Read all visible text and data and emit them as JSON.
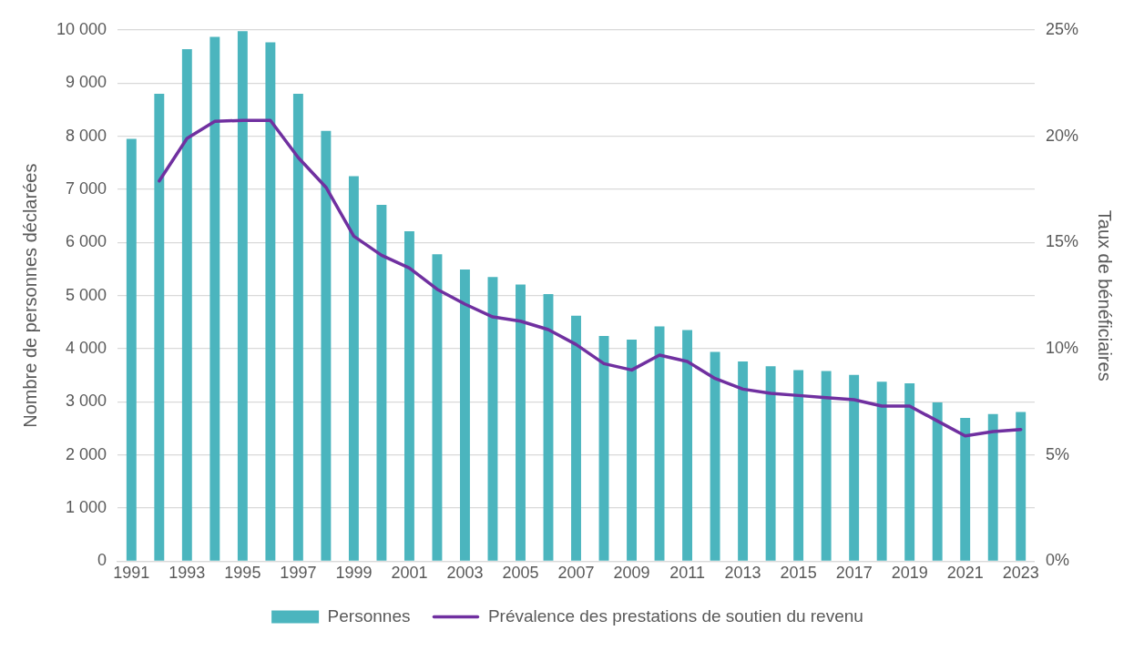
{
  "chart_data": {
    "type": "bar",
    "ylabel": "Nombre de personnes déclarées",
    "y2label": "Taux de bénéficiaires",
    "categories": [
      "1991",
      null,
      "1993",
      null,
      "1995",
      null,
      "1997",
      null,
      "1999",
      null,
      "2001",
      null,
      "2003",
      null,
      "2005",
      null,
      "2007",
      null,
      "2009",
      null,
      "2011",
      null,
      "2013",
      null,
      "2015",
      null,
      "2017",
      null,
      "2019",
      null,
      "2021",
      null,
      "2023"
    ],
    "series": [
      {
        "name": "Personnes",
        "color": "#4bb5be",
        "values": [
          7950,
          8800,
          9640,
          9870,
          9980,
          9770,
          8800,
          8100,
          7250,
          6710,
          6210,
          5780,
          5490,
          5350,
          5210,
          5030,
          4620,
          4240,
          4170,
          4420,
          4350,
          3940,
          3760,
          3670,
          3600,
          3580,
          3510,
          3380,
          3350,
          2990,
          2700,
          2770,
          2810
        ]
      },
      {
        "name": "Prévalence des prestations de soutien du revenu",
        "type": "line",
        "axis": "y2",
        "color": "#7030a0",
        "values": [
          null,
          17.9,
          19.9,
          20.7,
          20.75,
          20.75,
          19.0,
          17.6,
          15.3,
          14.4,
          13.8,
          12.8,
          12.1,
          11.5,
          11.3,
          10.9,
          10.2,
          9.3,
          9.0,
          9.7,
          9.4,
          8.6,
          8.1,
          7.9,
          7.8,
          7.7,
          7.6,
          7.3,
          7.3,
          6.6,
          5.9,
          6.1,
          6.2
        ]
      }
    ],
    "ylim": [
      0,
      10000
    ],
    "yticks": [
      {
        "value": 0,
        "label": "0"
      },
      {
        "value": 1000,
        "label": "1 000"
      },
      {
        "value": 2000,
        "label": "2 000"
      },
      {
        "value": 3000,
        "label": "3 000"
      },
      {
        "value": 4000,
        "label": "4 000"
      },
      {
        "value": 5000,
        "label": "5 000"
      },
      {
        "value": 6000,
        "label": "6 000"
      },
      {
        "value": 7000,
        "label": "7 000"
      },
      {
        "value": 8000,
        "label": "8 000"
      },
      {
        "value": 9000,
        "label": "9 000"
      },
      {
        "value": 10000,
        "label": "10 000"
      }
    ],
    "y2lim": [
      0,
      25
    ],
    "y2ticks": [
      {
        "value": 0,
        "label": "0%"
      },
      {
        "value": 5,
        "label": "5%"
      },
      {
        "value": 10,
        "label": "10%"
      },
      {
        "value": 15,
        "label": "15%"
      },
      {
        "value": 20,
        "label": "20%"
      },
      {
        "value": 25,
        "label": "25%"
      }
    ],
    "grid": "y",
    "legend": "bottom",
    "marker": "none",
    "line_style": "solid"
  }
}
